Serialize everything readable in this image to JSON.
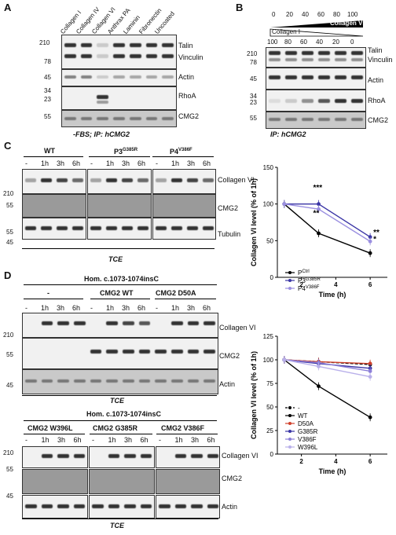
{
  "panel_a": {
    "letter": "A",
    "lanes": [
      "Collagen I",
      "Collagen IV",
      "Collagen VI",
      "Anthrax PA",
      "Laminin",
      "Fibronectin",
      "Uncoated"
    ],
    "markers": [
      "210",
      "78",
      "45",
      "34",
      "23",
      "55"
    ],
    "blots": [
      "Talin",
      "Vinculin",
      "Actin",
      "RhoA",
      "CMG2"
    ],
    "caption": "-FBS; IP: hCMG2"
  },
  "panel_b": {
    "letter": "B",
    "top_values": [
      "0",
      "20",
      "40",
      "60",
      "80",
      "100"
    ],
    "top_label": "Collagen VI",
    "bottom_label": "Collagen I",
    "bottom_values": [
      "100",
      "80",
      "60",
      "40",
      "20",
      "0"
    ],
    "markers": [
      "210",
      "78",
      "45",
      "34",
      "23",
      "55"
    ],
    "blots": [
      "Talin",
      "Vinculin",
      "Actin",
      "RhoA",
      "CMG2"
    ],
    "caption": "IP: hCMG2"
  },
  "panel_c": {
    "letter": "C",
    "groups": [
      "WT",
      "P3",
      "P4"
    ],
    "group_sup": [
      "",
      "G385R",
      "V386F"
    ],
    "times": [
      "-",
      "1h",
      "3h",
      "6h"
    ],
    "markers": [
      "210",
      "55",
      "55",
      "45"
    ],
    "blots": [
      "Collagen VI",
      "CMG2",
      "Tubulin"
    ],
    "caption": "TCE"
  },
  "panel_d": {
    "letter": "D",
    "header": "Hom. c.1073-1074insC",
    "groups": [
      "-",
      "CMG2 WT",
      "CMG2 D50A"
    ],
    "times": [
      "-",
      "1h",
      "3h",
      "6h"
    ],
    "markers": [
      "210",
      "55",
      "45"
    ],
    "blots": [
      "Collagen VI",
      "CMG2",
      "Actin"
    ],
    "caption": "TCE",
    "header2": "Hom. c.1073-1074insC",
    "groups2": [
      "CMG2 W396L",
      "CMG2 G385R",
      "CMG2 V386F"
    ],
    "markers2": [
      "210",
      "55",
      "45"
    ],
    "blots2": [
      "Collagen VI",
      "CMG2",
      "Actin"
    ],
    "caption2": "TCE"
  },
  "chart_data": [
    {
      "type": "line",
      "ylabel": "Collagen VI level (% of 1h)",
      "xlabel": "Time (h)",
      "x": [
        1,
        3,
        6
      ],
      "xlim": [
        0.6,
        7
      ],
      "ylim": [
        0,
        150
      ],
      "xticks": [
        2,
        4,
        6
      ],
      "yticks": [
        0,
        50,
        100,
        150
      ],
      "significance": [
        {
          "x": 3,
          "y": 119,
          "text": "***"
        },
        {
          "x": 3,
          "y": 84,
          "text": "**"
        },
        {
          "x": 6,
          "y": 58,
          "text": "**"
        },
        {
          "x": 6,
          "y": 49,
          "text": "*"
        }
      ],
      "legend": [
        {
          "main": "P",
          "sup": "Ctrl"
        },
        {
          "main": "P3",
          "sup": "G385R"
        },
        {
          "main": "P4",
          "sup": "V386F"
        }
      ],
      "series": [
        {
          "values": [
            100,
            60,
            33
          ],
          "color": "#000000"
        },
        {
          "values": [
            100,
            100,
            55
          ],
          "color": "#3a35a5"
        },
        {
          "values": [
            100,
            93,
            49
          ],
          "color": "#9a8fe0"
        }
      ]
    },
    {
      "type": "line",
      "ylabel": "Collagen VI level (% of 1h)",
      "xlabel": "Time (h)",
      "x": [
        1,
        3,
        6
      ],
      "xlim": [
        0.6,
        7
      ],
      "ylim": [
        0,
        125
      ],
      "xticks": [
        2,
        4,
        6
      ],
      "yticks": [
        0,
        25,
        50,
        75,
        100,
        125
      ],
      "legend": [
        {
          "main": "-",
          "sup": ""
        },
        {
          "main": "WT",
          "sup": ""
        },
        {
          "main": "D50A",
          "sup": ""
        },
        {
          "main": "G385R",
          "sup": ""
        },
        {
          "main": "V386F",
          "sup": ""
        },
        {
          "main": "W396L",
          "sup": ""
        }
      ],
      "series": [
        {
          "values": [
            100,
            98,
            95
          ],
          "color": "#000000",
          "dash": true
        },
        {
          "values": [
            100,
            72,
            39
          ],
          "color": "#000000"
        },
        {
          "values": [
            100,
            98,
            96
          ],
          "color": "#d0402a"
        },
        {
          "values": [
            100,
            96,
            91
          ],
          "color": "#3a35a5"
        },
        {
          "values": [
            100,
            97,
            88
          ],
          "color": "#8c7fd8"
        },
        {
          "values": [
            100,
            93,
            82
          ],
          "color": "#b9b0ea"
        }
      ]
    }
  ]
}
